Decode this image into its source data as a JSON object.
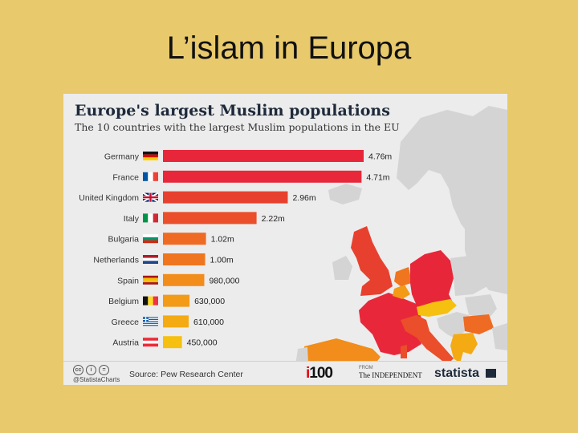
{
  "slide": {
    "title": "L’islam in Europa"
  },
  "chart_data": {
    "type": "bar",
    "orientation": "horizontal",
    "title": "Europe's largest Muslim populations",
    "subtitle": "The 10 countries with the largest Muslim populations in the EU",
    "categories": [
      "Germany",
      "France",
      "United Kingdom",
      "Italy",
      "Bulgaria",
      "Netherlands",
      "Spain",
      "Belgium",
      "Greece",
      "Austria"
    ],
    "values": [
      4760000,
      4710000,
      2960000,
      2220000,
      1020000,
      1000000,
      980000,
      630000,
      610000,
      450000
    ],
    "value_labels": [
      "4.76m",
      "4.71m",
      "2.96m",
      "2.22m",
      "1.02m",
      "1.00m",
      "980,000",
      "630,000",
      "610,000",
      "450,000"
    ],
    "bar_colors": [
      "#e8263a",
      "#e8283a",
      "#e8402e",
      "#eb4e2a",
      "#ef6a22",
      "#f0751f",
      "#f28c1a",
      "#f39a16",
      "#f4aa13",
      "#f5c010"
    ],
    "grid": false
  },
  "footer": {
    "cc_icons": [
      "cc",
      "i",
      "="
    ],
    "handle": "@StatistaCharts",
    "source": "Source: Pew Research Center",
    "i100": "100",
    "i100_prefix": "i",
    "from_label": "FROM",
    "independent": "The INDEPENDENT",
    "brand": "statista"
  },
  "colors": {
    "background": "#e8c96c",
    "panel": "#ececec",
    "map_land": "#d4d4d4",
    "map_sea": "#ececec"
  }
}
